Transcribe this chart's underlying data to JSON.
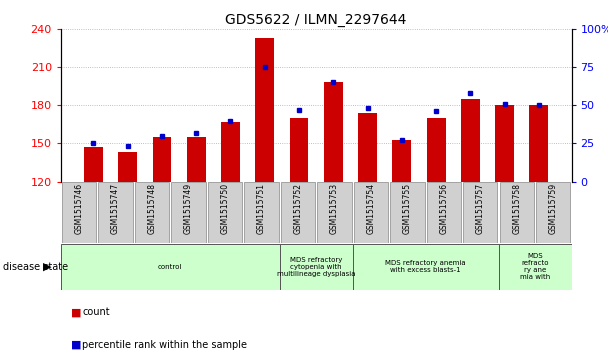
{
  "title": "GDS5622 / ILMN_2297644",
  "samples": [
    "GSM1515746",
    "GSM1515747",
    "GSM1515748",
    "GSM1515749",
    "GSM1515750",
    "GSM1515751",
    "GSM1515752",
    "GSM1515753",
    "GSM1515754",
    "GSM1515755",
    "GSM1515756",
    "GSM1515757",
    "GSM1515758",
    "GSM1515759"
  ],
  "counts": [
    147,
    143,
    155,
    155,
    167,
    233,
    170,
    198,
    174,
    153,
    170,
    185,
    180,
    180
  ],
  "percentiles": [
    25,
    23,
    30,
    32,
    40,
    75,
    47,
    65,
    48,
    27,
    46,
    58,
    51,
    50
  ],
  "ylim_left": [
    120,
    240
  ],
  "ylim_right": [
    0,
    100
  ],
  "yticks_left": [
    120,
    150,
    180,
    210,
    240
  ],
  "yticks_right": [
    0,
    25,
    50,
    75,
    100
  ],
  "bar_color": "#cc0000",
  "dot_color": "#0000cc",
  "grid_color": "#aaaaaa",
  "bar_width": 0.55,
  "disease_groups": [
    {
      "label": "control",
      "start": 0,
      "end": 6,
      "color": "#ccffcc"
    },
    {
      "label": "MDS refractory\ncytopenia with\nmultilineage dysplasia",
      "start": 6,
      "end": 8,
      "color": "#ccffcc"
    },
    {
      "label": "MDS refractory anemia\nwith excess blasts-1",
      "start": 8,
      "end": 12,
      "color": "#ccffcc"
    },
    {
      "label": "MDS\nrefracto\nry ane\nmia with",
      "start": 12,
      "end": 14,
      "color": "#ccffcc"
    }
  ],
  "legend_items": [
    {
      "label": "count",
      "color": "#cc0000"
    },
    {
      "label": "percentile rank within the sample",
      "color": "#0000cc"
    }
  ],
  "tick_bg_color": "#d0d0d0",
  "fig_width": 6.08,
  "fig_height": 3.63,
  "dpi": 100
}
